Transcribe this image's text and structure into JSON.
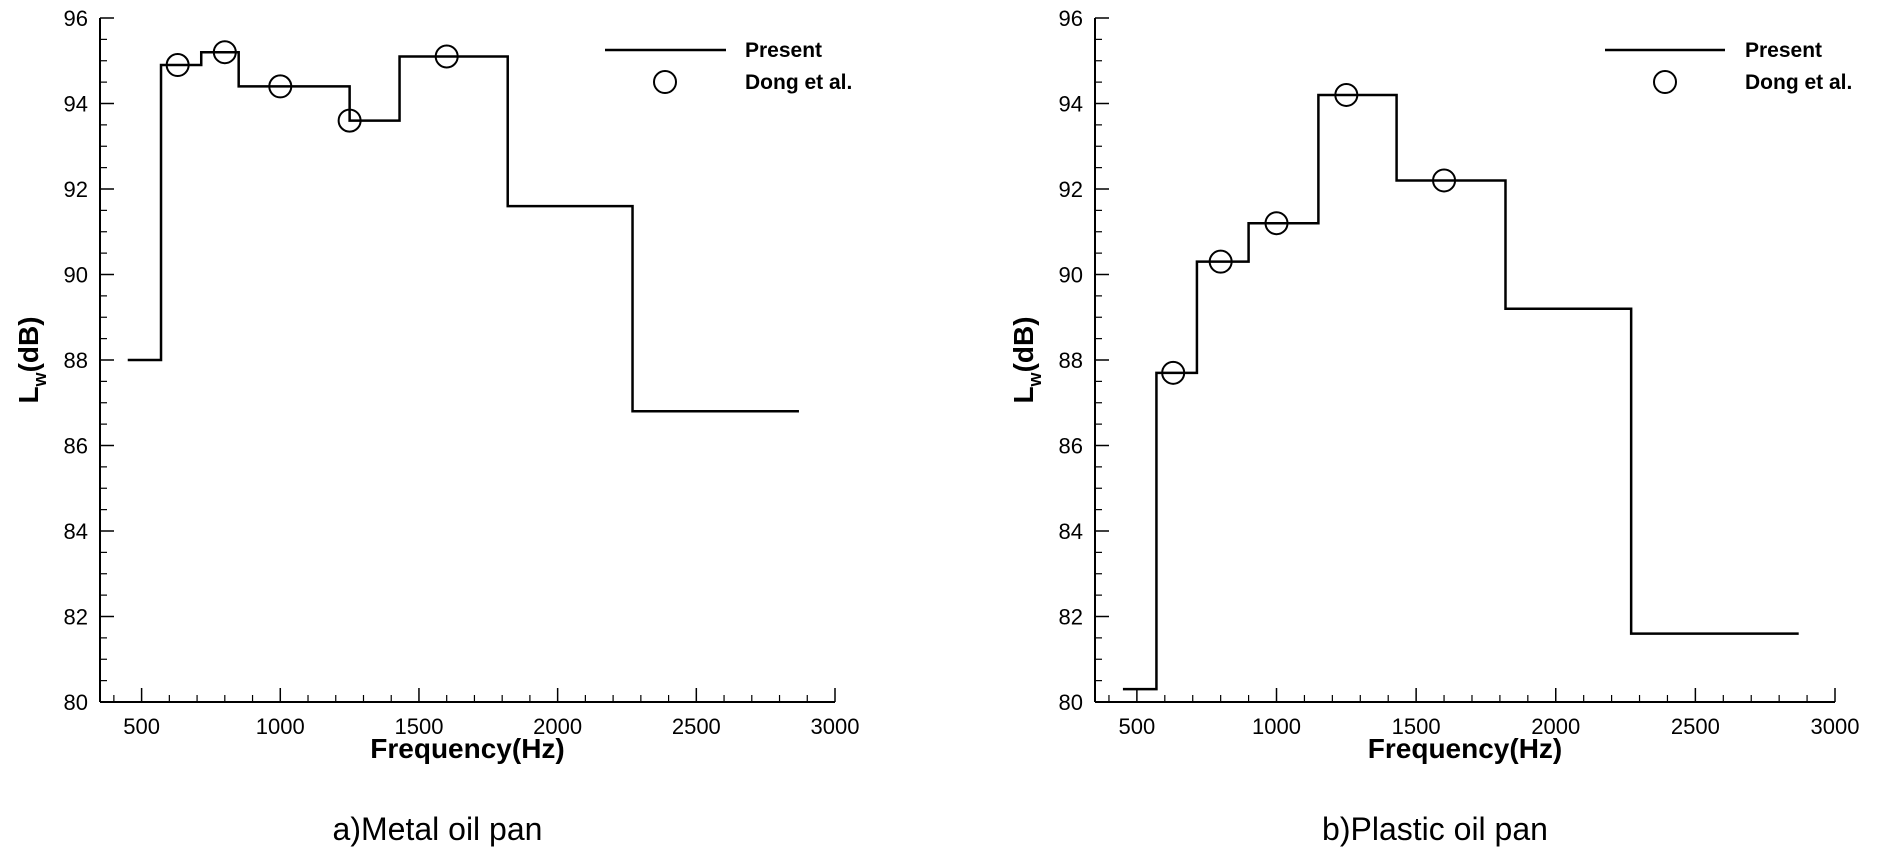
{
  "chart_data": [
    {
      "type": "line",
      "caption": "a)Metal oil pan",
      "xlabel": "Frequency(Hz)",
      "ylabel": "L",
      "ylabel_sub": "w",
      "ylabel_suffix": "(dB)",
      "xlim": [
        350,
        3000
      ],
      "ylim": [
        80,
        96
      ],
      "xticks": [
        500,
        1000,
        1500,
        2000,
        2500,
        3000
      ],
      "yticks": [
        80,
        82,
        84,
        86,
        88,
        90,
        92,
        94,
        96
      ],
      "legend": {
        "position": "top-right",
        "entries": [
          "Present",
          "Dong et al."
        ]
      },
      "series": [
        {
          "name": "Present",
          "style": "step",
          "bands": [
            {
              "x0": 450,
              "x1": 570,
              "y": 88.0
            },
            {
              "x0": 570,
              "x1": 715,
              "y": 94.9
            },
            {
              "x0": 715,
              "x1": 850,
              "y": 95.2
            },
            {
              "x0": 850,
              "x1": 1250,
              "y": 94.4
            },
            {
              "x0": 1250,
              "x1": 1430,
              "y": 93.6
            },
            {
              "x0": 1430,
              "x1": 1820,
              "y": 95.1
            },
            {
              "x0": 1820,
              "x1": 2270,
              "y": 91.6
            },
            {
              "x0": 2270,
              "x1": 2870,
              "y": 86.8
            }
          ]
        },
        {
          "name": "Dong et al.",
          "style": "marker",
          "points": [
            {
              "x": 630,
              "y": 94.9
            },
            {
              "x": 800,
              "y": 95.2
            },
            {
              "x": 1000,
              "y": 94.4
            },
            {
              "x": 1250,
              "y": 93.6
            },
            {
              "x": 1600,
              "y": 95.1
            }
          ]
        }
      ]
    },
    {
      "type": "line",
      "caption": "b)Plastic oil pan",
      "xlabel": "Frequency(Hz)",
      "ylabel": "L",
      "ylabel_sub": "w",
      "ylabel_suffix": "(dB)",
      "xlim": [
        350,
        3000
      ],
      "ylim": [
        80,
        96
      ],
      "xticks": [
        500,
        1000,
        1500,
        2000,
        2500,
        3000
      ],
      "yticks": [
        80,
        82,
        84,
        86,
        88,
        90,
        92,
        94,
        96
      ],
      "legend": {
        "position": "top-right",
        "entries": [
          "Present",
          "Dong et al."
        ]
      },
      "series": [
        {
          "name": "Present",
          "style": "step",
          "bands": [
            {
              "x0": 450,
              "x1": 570,
              "y": 80.3
            },
            {
              "x0": 570,
              "x1": 715,
              "y": 87.7
            },
            {
              "x0": 715,
              "x1": 900,
              "y": 90.3
            },
            {
              "x0": 900,
              "x1": 1150,
              "y": 91.2
            },
            {
              "x0": 1150,
              "x1": 1430,
              "y": 94.2
            },
            {
              "x0": 1430,
              "x1": 1820,
              "y": 92.2
            },
            {
              "x0": 1820,
              "x1": 2270,
              "y": 89.2
            },
            {
              "x0": 2270,
              "x1": 2870,
              "y": 81.6
            }
          ]
        },
        {
          "name": "Dong et al.",
          "style": "marker",
          "points": [
            {
              "x": 630,
              "y": 87.7
            },
            {
              "x": 800,
              "y": 90.3
            },
            {
              "x": 1000,
              "y": 91.2
            },
            {
              "x": 1250,
              "y": 94.2
            },
            {
              "x": 1600,
              "y": 92.2
            }
          ]
        }
      ]
    }
  ]
}
